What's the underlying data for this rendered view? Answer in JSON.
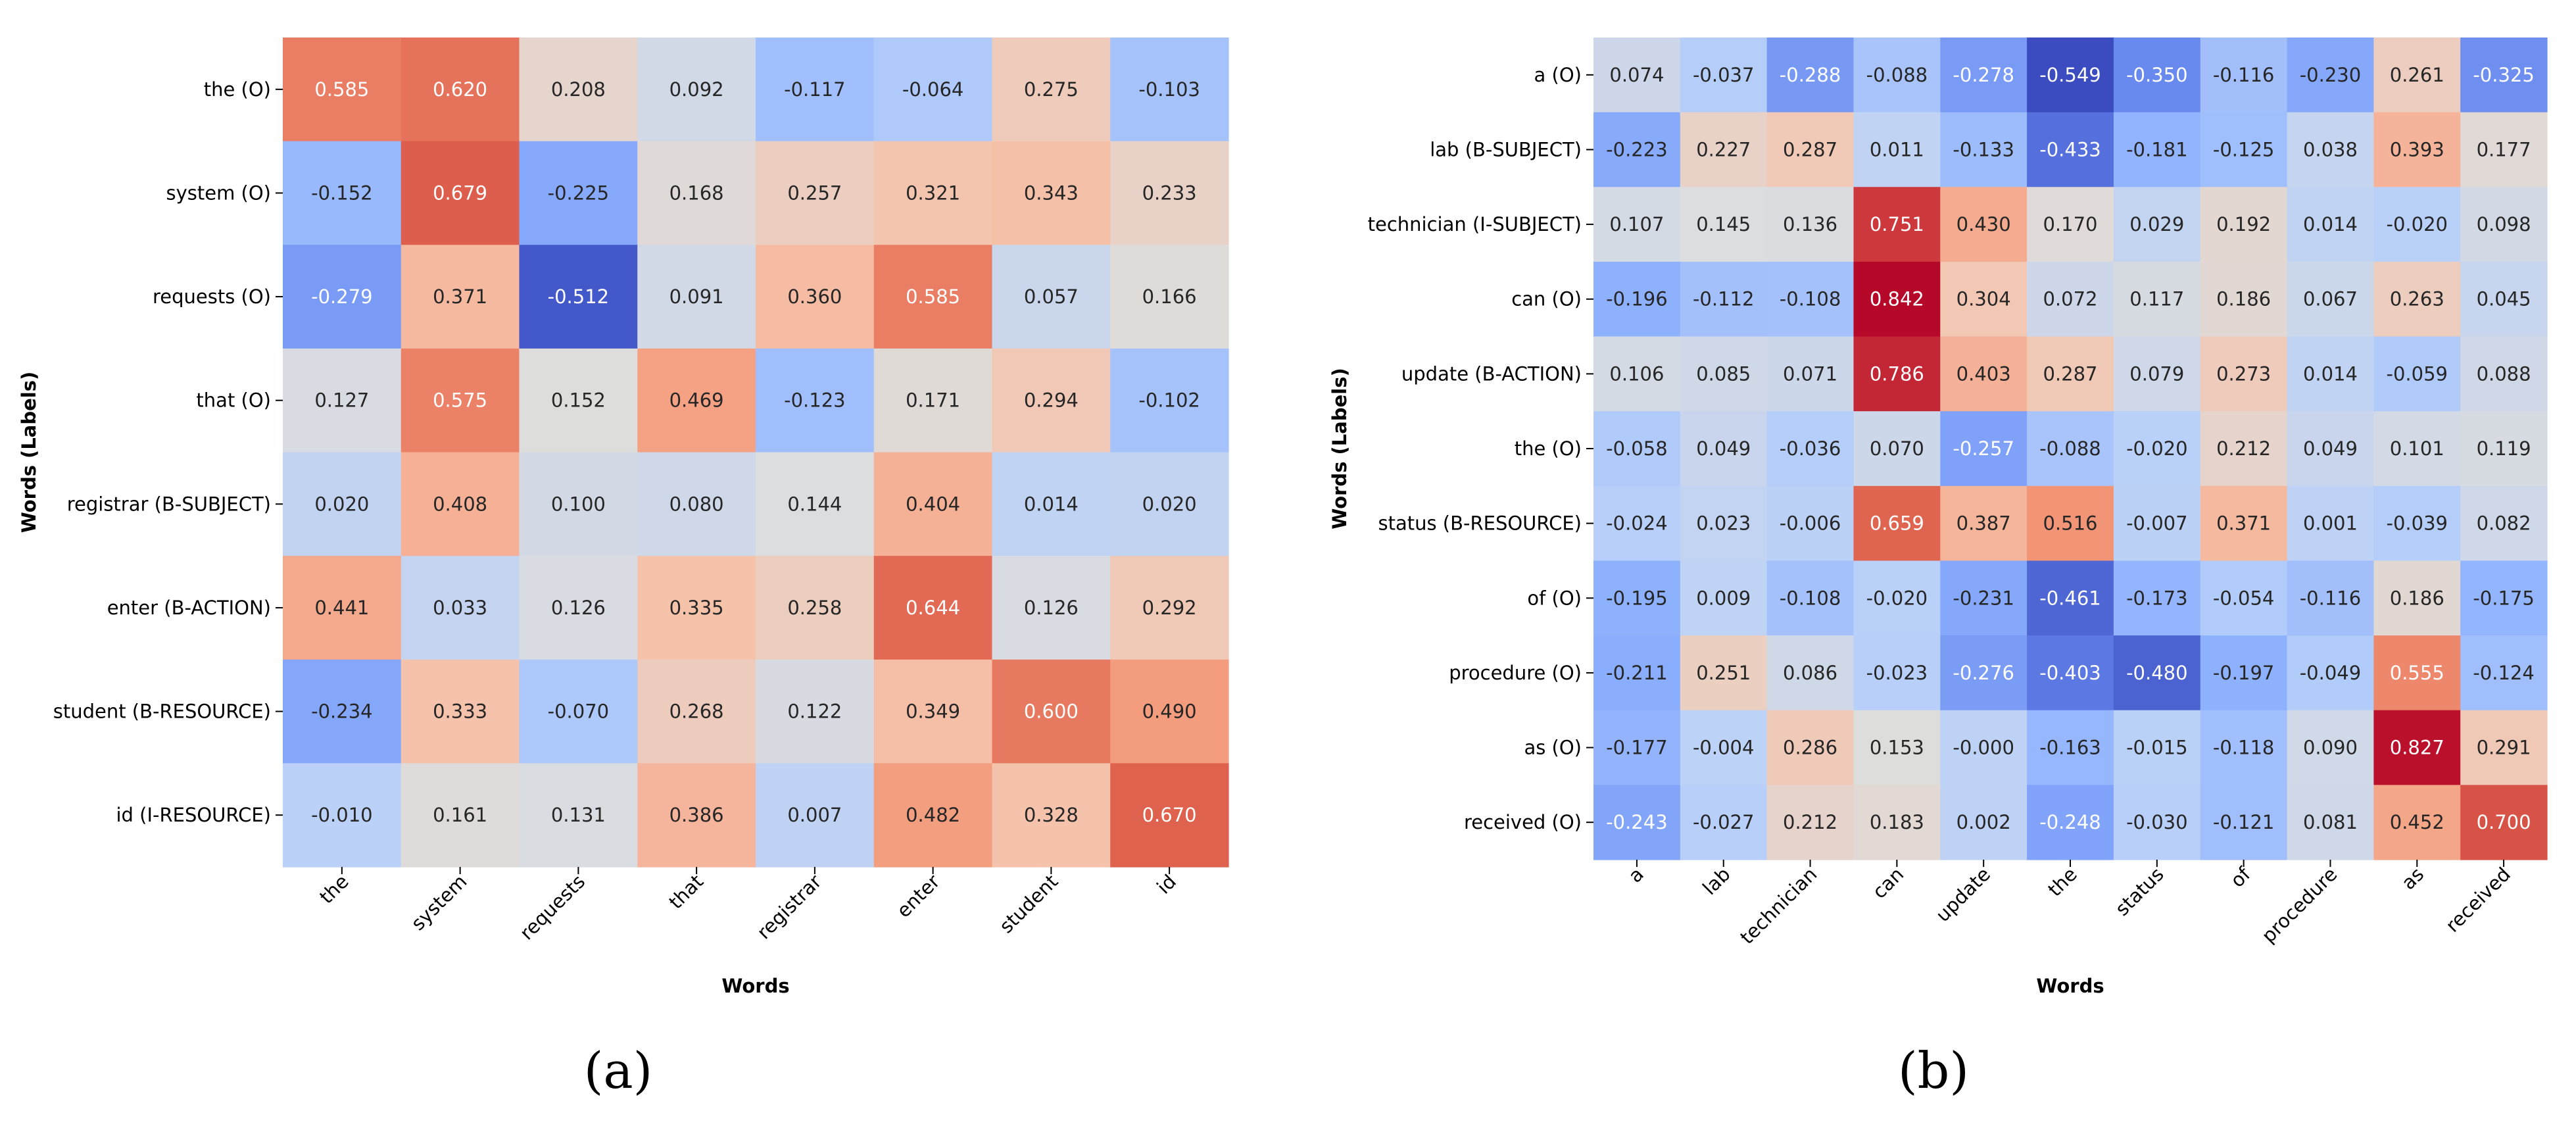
{
  "chart_data": [
    {
      "type": "heatmap",
      "title": "",
      "xlabel": "Words",
      "ylabel": "Words (Labels)",
      "caption": "(a)",
      "vmin": -0.55,
      "vmax": 0.85,
      "colormap": "coolwarm",
      "x": [
        "the",
        "system",
        "requests",
        "that",
        "registrar",
        "enter",
        "student",
        "id"
      ],
      "y": [
        "the (O)",
        "system (O)",
        "requests (O)",
        "that (O)",
        "registrar (B-SUBJECT)",
        "enter (B-ACTION)",
        "student (B-RESOURCE)",
        "id (I-RESOURCE)"
      ],
      "labels": [
        [
          "0.585",
          "0.620",
          "0.208",
          "0.092",
          "-0.117",
          "-0.064",
          "0.275",
          "-0.103"
        ],
        [
          "-0.152",
          "0.679",
          "-0.225",
          "0.168",
          "0.257",
          "0.321",
          "0.343",
          "0.233"
        ],
        [
          "-0.279",
          "0.371",
          "-0.512",
          "0.091",
          "0.360",
          "0.585",
          "0.057",
          "0.166"
        ],
        [
          "0.127",
          "0.575",
          "0.152",
          "0.469",
          "-0.123",
          "0.171",
          "0.294",
          "-0.102"
        ],
        [
          "0.020",
          "0.408",
          "0.100",
          "0.080",
          "0.144",
          "0.404",
          "0.014",
          "0.020"
        ],
        [
          "0.441",
          "0.033",
          "0.126",
          "0.335",
          "0.258",
          "0.644",
          "0.126",
          "0.292"
        ],
        [
          "-0.234",
          "0.333",
          "-0.070",
          "0.268",
          "0.122",
          "0.349",
          "0.600",
          "0.490"
        ],
        [
          "-0.010",
          "0.161",
          "0.131",
          "0.386",
          "0.007",
          "0.482",
          "0.328",
          "0.670"
        ]
      ]
    },
    {
      "type": "heatmap",
      "title": "",
      "xlabel": "Words",
      "ylabel": "Words (Labels)",
      "caption": "(b)",
      "vmin": -0.55,
      "vmax": 0.85,
      "colormap": "coolwarm",
      "x": [
        "a",
        "lab",
        "technician",
        "can",
        "update",
        "the",
        "status",
        "of",
        "procedure",
        "as",
        "received"
      ],
      "y": [
        "a (O)",
        "lab (B-SUBJECT)",
        "technician (I-SUBJECT)",
        "can (O)",
        "update (B-ACTION)",
        "the (O)",
        "status (B-RESOURCE)",
        "of (O)",
        "procedure (O)",
        "as (O)",
        "received (O)"
      ],
      "labels": [
        [
          "0.074",
          "-0.037",
          "-0.288",
          "-0.088",
          "-0.278",
          "-0.549",
          "-0.350",
          "-0.116",
          "-0.230",
          "0.261",
          "-0.325"
        ],
        [
          "-0.223",
          "0.227",
          "0.287",
          "0.011",
          "-0.133",
          "-0.433",
          "-0.181",
          "-0.125",
          "0.038",
          "0.393",
          "0.177"
        ],
        [
          "0.107",
          "0.145",
          "0.136",
          "0.751",
          "0.430",
          "0.170",
          "0.029",
          "0.192",
          "0.014",
          "-0.020",
          "0.098"
        ],
        [
          "-0.196",
          "-0.112",
          "-0.108",
          "0.842",
          "0.304",
          "0.072",
          "0.117",
          "0.186",
          "0.067",
          "0.263",
          "0.045"
        ],
        [
          "0.106",
          "0.085",
          "0.071",
          "0.786",
          "0.403",
          "0.287",
          "0.079",
          "0.273",
          "0.014",
          "-0.059",
          "0.088"
        ],
        [
          "-0.058",
          "0.049",
          "-0.036",
          "0.070",
          "-0.257",
          "-0.088",
          "-0.020",
          "0.212",
          "0.049",
          "0.101",
          "0.119"
        ],
        [
          "-0.024",
          "0.023",
          "-0.006",
          "0.659",
          "0.387",
          "0.516",
          "-0.007",
          "0.371",
          "0.001",
          "-0.039",
          "0.082"
        ],
        [
          "-0.195",
          "0.009",
          "-0.108",
          "-0.020",
          "-0.231",
          "-0.461",
          "-0.173",
          "-0.054",
          "-0.116",
          "0.186",
          "-0.175"
        ],
        [
          "-0.211",
          "0.251",
          "0.086",
          "-0.023",
          "-0.276",
          "-0.403",
          "-0.480",
          "-0.197",
          "-0.049",
          "0.555",
          "-0.124"
        ],
        [
          "-0.177",
          "-0.004",
          "0.286",
          "0.153",
          "-0.000",
          "-0.163",
          "-0.015",
          "-0.118",
          "0.090",
          "0.827",
          "0.291"
        ],
        [
          "-0.243",
          "-0.027",
          "0.212",
          "0.183",
          "0.002",
          "-0.248",
          "-0.030",
          "-0.121",
          "0.081",
          "0.452",
          "0.700"
        ]
      ]
    }
  ]
}
